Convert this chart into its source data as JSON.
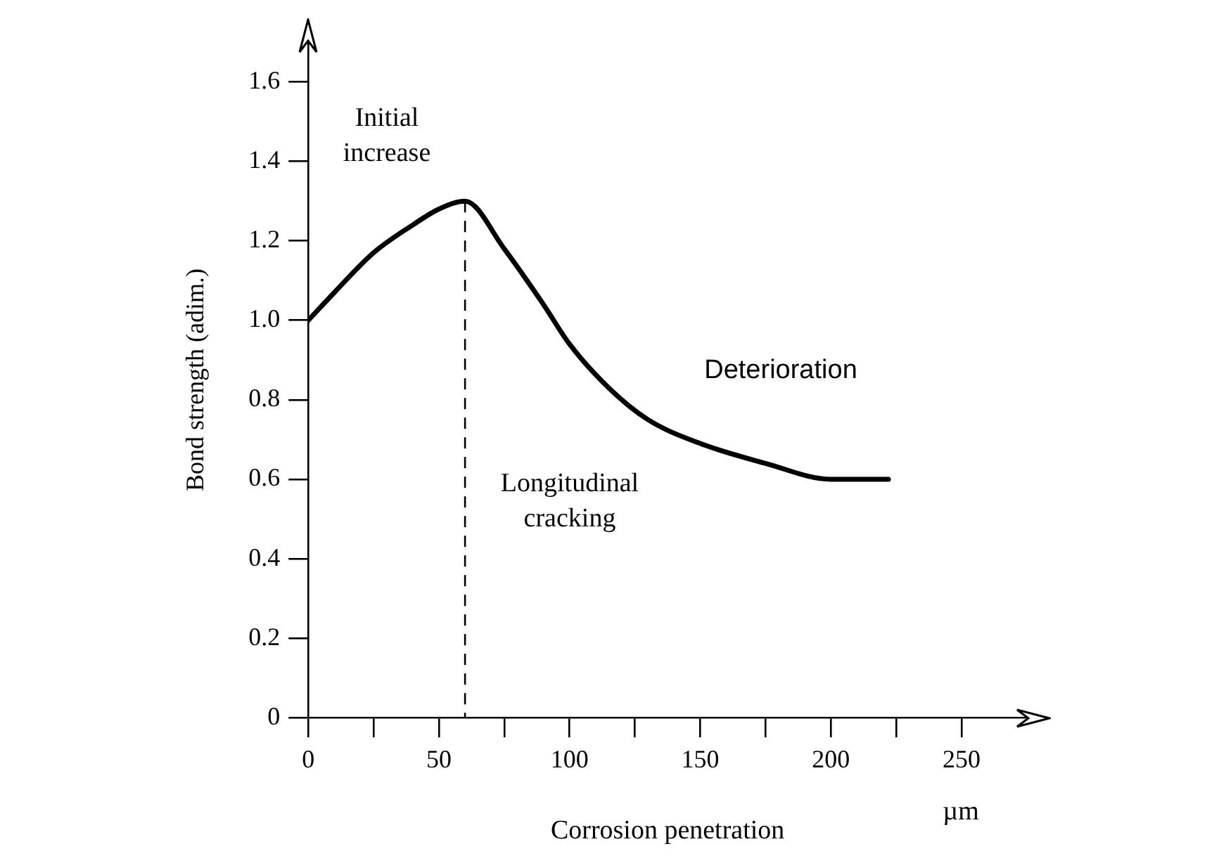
{
  "chart_data": {
    "type": "line",
    "xlabel": "Corrosion penetration",
    "ylabel": "Bond strength (adim.)",
    "x": [
      0,
      10,
      25,
      40,
      50,
      60,
      75,
      90,
      100,
      115,
      130,
      150,
      175,
      200,
      222
    ],
    "series": [
      {
        "color": "#000000",
        "values": [
          1.0,
          1.07,
          1.17,
          1.24,
          1.28,
          1.3,
          1.18,
          1.04,
          0.94,
          0.83,
          0.75,
          0.69,
          0.64,
          0.6,
          0.6
        ]
      }
    ],
    "xlim": [
      0,
      275
    ],
    "xticks": [
      0,
      {
        "value": 25,
        "label": null
      },
      50,
      {
        "value": 75,
        "label": null
      },
      100,
      {
        "value": 125,
        "label": null
      },
      150,
      {
        "value": 175,
        "label": null
      },
      200,
      {
        "value": 225,
        "label": null
      },
      250
    ],
    "ylim": [
      0,
      1.7
    ],
    "yticks": [
      0,
      0.2,
      0.4,
      0.6,
      0.8,
      {
        "value": 1,
        "label": "1.0"
      },
      1.2,
      1.4,
      1.6
    ],
    "ref_lines": [
      {
        "axis": "x",
        "value": 60,
        "color": "#000000",
        "line_style": "dashed"
      }
    ],
    "annotations": [
      "Initial increase",
      "Longitudinal cracking",
      "Deterioration",
      "µm"
    ],
    "grid": false,
    "legend": false,
    "marker": "none",
    "line_style": "solid"
  }
}
